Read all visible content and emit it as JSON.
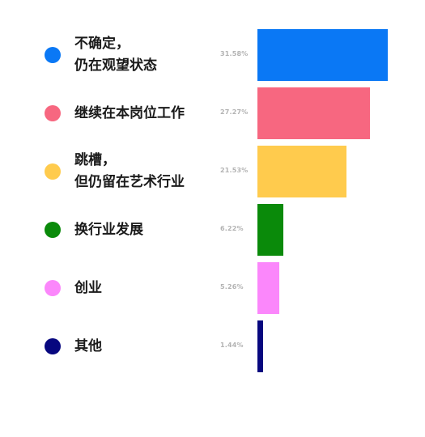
{
  "chart_data": {
    "type": "bar",
    "orientation": "horizontal",
    "title": "",
    "xlabel": "",
    "ylabel": "",
    "xlim": [
      0,
      31.58
    ],
    "grid": false,
    "legend": "none",
    "categories": [
      [
        "不确定，",
        "仍在观望状态"
      ],
      [
        "继续在本岗位工作"
      ],
      [
        "跳槽，",
        "但仍留在艺术行业"
      ],
      [
        "换行业发展"
      ],
      [
        "创业"
      ],
      [
        "其他"
      ]
    ],
    "values": [
      31.58,
      27.27,
      21.53,
      6.22,
      5.26,
      1.44
    ],
    "value_labels": [
      "31.58%",
      "27.27%",
      "21.53%",
      "6.22%",
      "5.26%",
      "1.44%"
    ],
    "colors": [
      "#0a78f5",
      "#f76780",
      "#ffcb4d",
      "#0a8a0a",
      "#fb87fb",
      "#07077f"
    ]
  }
}
